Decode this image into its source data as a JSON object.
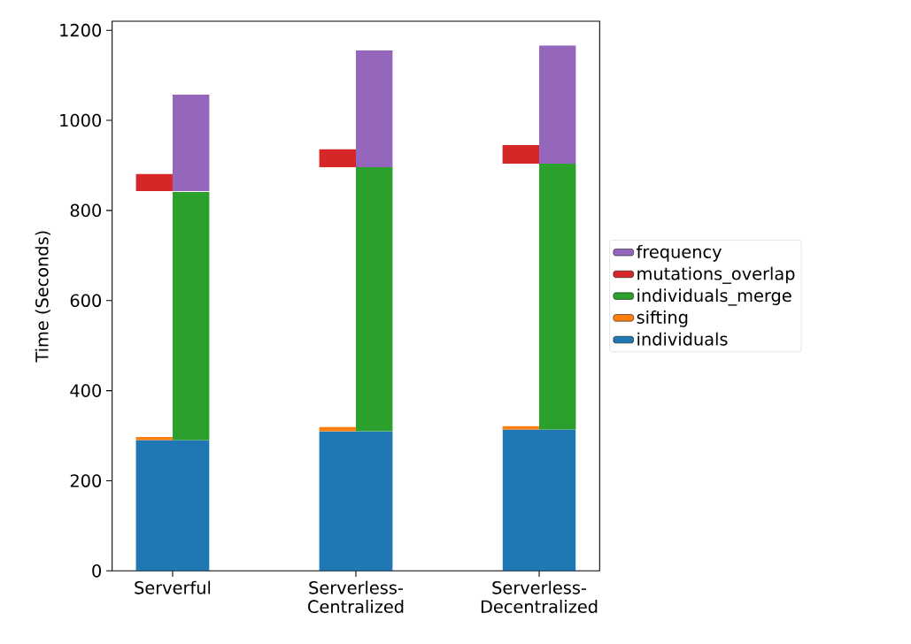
{
  "chart_data": {
    "type": "bar",
    "ylabel": "Time (Seconds)",
    "categories": [
      "Serverful",
      "Serverless-Centralized",
      "Serverless-Decentralized"
    ],
    "series": [
      {
        "name": "individuals",
        "color": "#1f77b4",
        "values": [
          290,
          310,
          314
        ],
        "base": [
          0,
          0,
          0
        ]
      },
      {
        "name": "sifting",
        "color": "#ff7f0e",
        "values": [
          7,
          9,
          7
        ],
        "base": [
          290,
          310,
          314
        ]
      },
      {
        "name": "individuals_merge",
        "color": "#2ca02c",
        "values": [
          551,
          586,
          590
        ],
        "base": [
          290,
          310,
          314
        ]
      },
      {
        "name": "mutations_overlap",
        "color": "#d62728",
        "values": [
          38,
          40,
          41
        ],
        "base": [
          843,
          896,
          904
        ]
      },
      {
        "name": "frequency",
        "color": "#9467bd",
        "values": [
          214,
          259,
          262
        ],
        "base": [
          843,
          896,
          904
        ]
      }
    ],
    "ylim": [
      0,
      1220
    ],
    "yticks": [
      0,
      200,
      400,
      600,
      800,
      1000,
      1200
    ],
    "legend": "right"
  }
}
